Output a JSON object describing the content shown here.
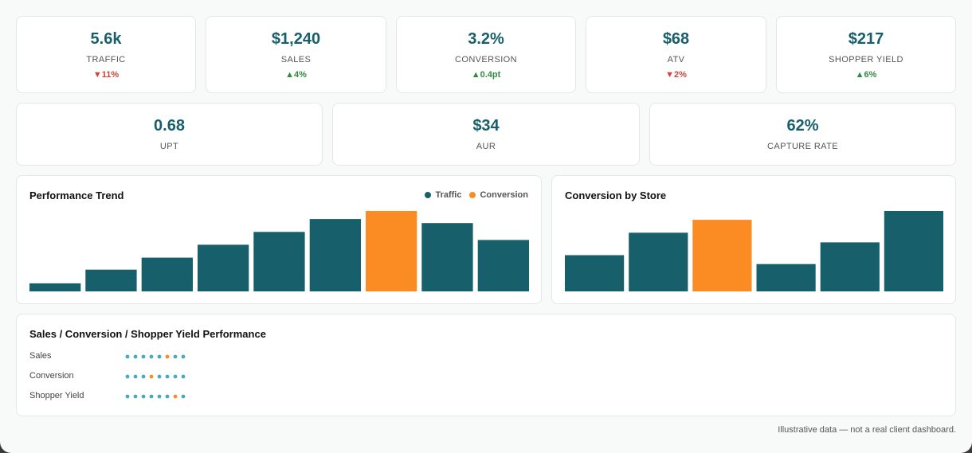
{
  "colors": {
    "teal": "#17606b",
    "orange": "#fb8c23",
    "dot_teal": "#4aa9bd",
    "up": "#2e8b3f",
    "down": "#d0433a"
  },
  "kpis_top": [
    {
      "value": "5.6k",
      "label": "TRAFFIC",
      "delta": "▼11%",
      "direction": "down"
    },
    {
      "value": "$1,240",
      "label": "SALES",
      "delta": "▲4%",
      "direction": "up"
    },
    {
      "value": "3.2%",
      "label": "CONVERSION",
      "delta": "▲0.4pt",
      "direction": "up"
    },
    {
      "value": "$68",
      "label": "ATV",
      "delta": "▼2%",
      "direction": "down"
    },
    {
      "value": "$217",
      "label": "SHOPPER YIELD",
      "delta": "▲6%",
      "direction": "up"
    }
  ],
  "kpis_bottom": [
    {
      "value": "0.68",
      "label": "UPT"
    },
    {
      "value": "$34",
      "label": "AUR"
    },
    {
      "value": "62%",
      "label": "CAPTURE RATE"
    }
  ],
  "chart_data": [
    {
      "type": "bar",
      "title": "Performance Trend",
      "legend": [
        "Traffic",
        "Conversion"
      ],
      "values": [
        10,
        27,
        42,
        58,
        74,
        90,
        100,
        85,
        64
      ],
      "highlight_index": 6,
      "ylim": [
        0,
        100
      ]
    },
    {
      "type": "bar",
      "title": "Conversion by Store",
      "values": [
        45,
        73,
        89,
        34,
        61,
        100
      ],
      "highlight_index": 2,
      "ylim": [
        0,
        100
      ]
    }
  ],
  "performance_panel": {
    "title": "Sales / Conversion / Shopper Yield Performance",
    "rows": [
      {
        "label": "Sales",
        "dot_count": 8,
        "highlight_index": 5
      },
      {
        "label": "Conversion",
        "dot_count": 8,
        "highlight_index": 3
      },
      {
        "label": "Shopper Yield",
        "dot_count": 8,
        "highlight_index": 6
      }
    ]
  },
  "footnote": "Illustrative data — not a real client dashboard."
}
